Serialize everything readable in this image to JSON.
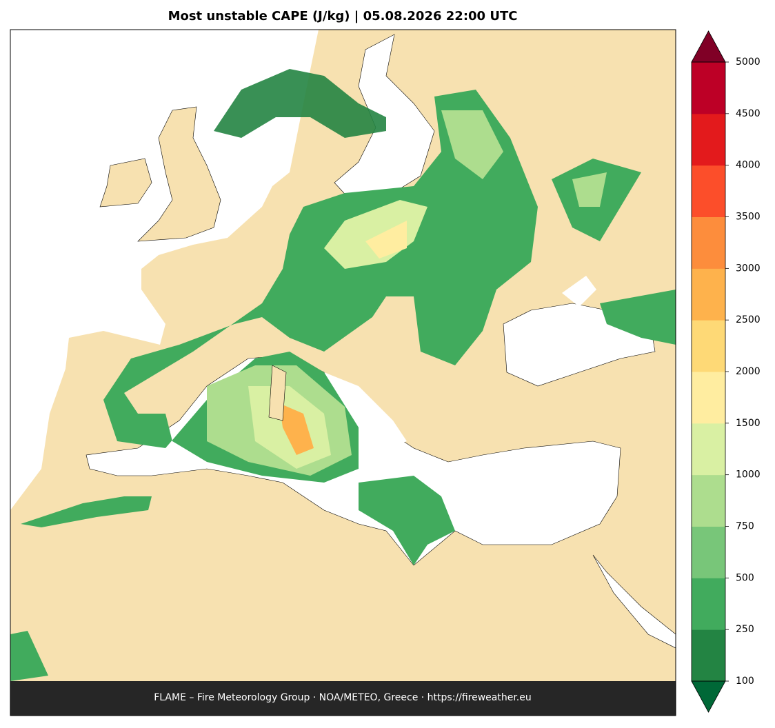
{
  "title": "Most unstable CAPE (J/kg)  |  05.08.2026 22:00 UTC",
  "footer": "FLAME – Fire Meteorology Group · NOA/METEO, Greece · https://fireweather.eu",
  "colorbar": {
    "ticks": [
      100,
      250,
      500,
      750,
      1000,
      1500,
      2000,
      2500,
      3000,
      3500,
      4000,
      4500,
      5000
    ],
    "colors": [
      "#238443",
      "#41ab5d",
      "#78c679",
      "#addd8e",
      "#d9f0a3",
      "#ffeda0",
      "#fed976",
      "#feb24c",
      "#fd8d3c",
      "#fc4e2a",
      "#e31a1c",
      "#bd0026"
    ],
    "under_color": "#006837",
    "over_color": "#800026"
  }
}
